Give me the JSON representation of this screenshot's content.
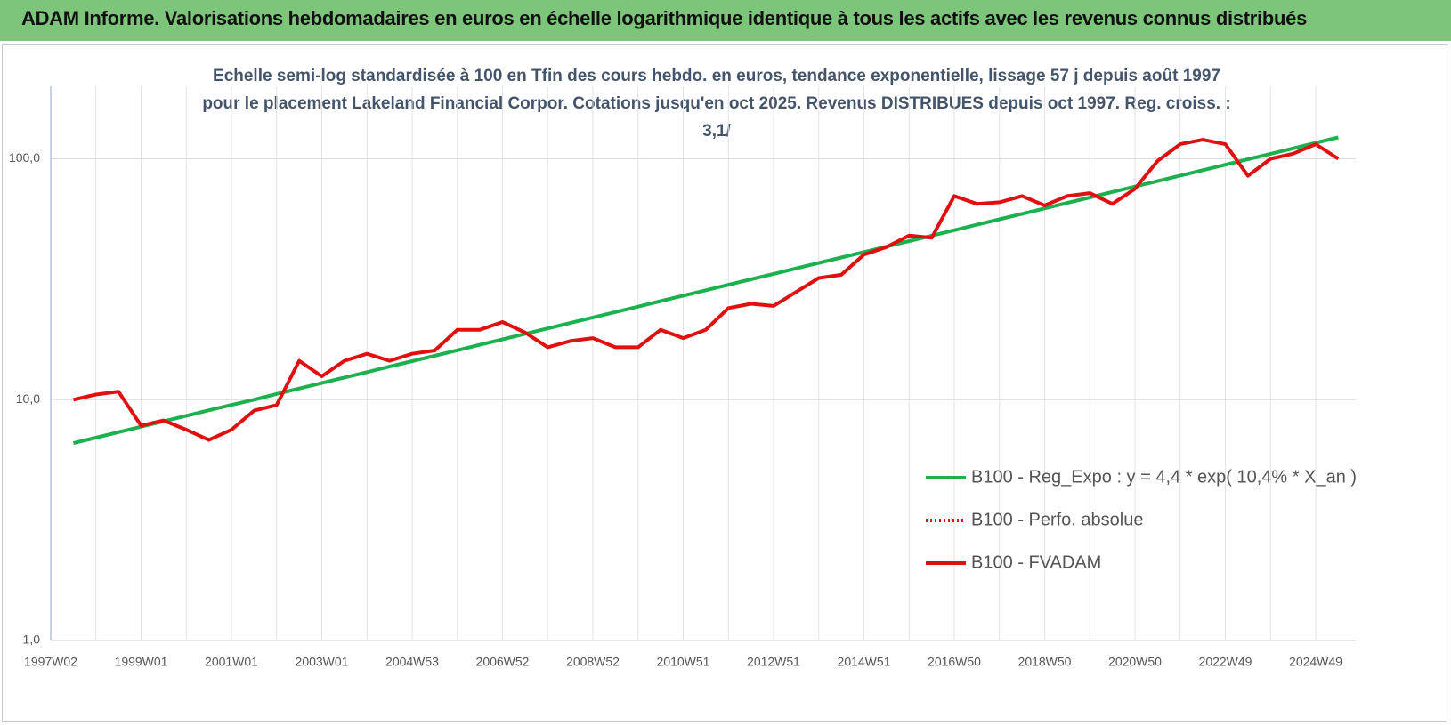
{
  "header": {
    "title": "ADAM Informe. Valorisations hebdomadaires en euros en échelle logarithmique identique à tous les actifs avec les revenus connus distribués"
  },
  "chart_data": {
    "type": "line",
    "title": "Echelle semi-log standardisée à 100 en Tfin des cours hebdo. en euros, tendance exponentielle, lissage 57 j depuis août 1997 pour le placement Lakeland Financial Corpor. Cotations jusqu'en oct 2025.  Revenus DISTRIBUES depuis oct 1997. Reg. croiss. : 3,1/",
    "categories": [
      "1997W02",
      null,
      null,
      null,
      "1999W01",
      null,
      null,
      null,
      "2001W01",
      null,
      null,
      null,
      "2003W01",
      null,
      null,
      null,
      "2004W53",
      null,
      null,
      null,
      "2006W52",
      null,
      null,
      null,
      "2008W52",
      null,
      null,
      null,
      "2010W51",
      null,
      null,
      null,
      "2012W51",
      null,
      null,
      null,
      "2014W51",
      null,
      null,
      null,
      "2016W50",
      null,
      null,
      null,
      "2018W50",
      null,
      null,
      null,
      "2020W50",
      null,
      null,
      null,
      "2022W49",
      null,
      null,
      null,
      "2024W49",
      null
    ],
    "series": [
      {
        "name": "B100 - Reg_Expo : y = 4,4 * exp( 10,4% *  X_an )",
        "color": "#1db04f",
        "style": "solid",
        "values": [
          null,
          6.6,
          6.95,
          7.33,
          7.72,
          8.13,
          8.57,
          9.03,
          9.51,
          10.0,
          10.56,
          11.13,
          11.72,
          12.35,
          13.01,
          13.71,
          14.44,
          15.22,
          16.03,
          16.89,
          17.8,
          18.75,
          19.75,
          20.81,
          21.93,
          23.1,
          24.34,
          25.64,
          27.01,
          28.46,
          29.99,
          31.59,
          33.28,
          35.07,
          36.94,
          38.92,
          41.0,
          43.2,
          45.52,
          47.95,
          50.52,
          53.23,
          56.08,
          59.08,
          62.24,
          65.58,
          69.09,
          72.79,
          76.69,
          80.79,
          85.12,
          89.68,
          94.48,
          99.54,
          104.9,
          110.5,
          116.4,
          122.6
        ]
      },
      {
        "name": "B100 - Perfo. absolue",
        "color": "#e01010",
        "style": "dotted",
        "values": [
          null,
          null,
          null,
          null,
          null,
          null,
          null,
          null,
          null,
          null,
          null,
          null,
          null,
          null,
          null,
          null,
          null,
          null,
          null,
          null,
          null,
          null,
          null,
          null,
          null,
          null,
          null,
          null,
          null,
          null,
          null,
          null,
          null,
          null,
          null,
          null,
          null,
          null,
          null,
          null,
          null,
          null,
          null,
          null,
          null,
          null,
          null,
          null,
          null,
          null,
          null,
          null,
          null,
          null,
          null,
          null,
          null,
          null
        ]
      },
      {
        "name": "B100 - FVADAM",
        "color": "#e01010",
        "style": "solid",
        "values": [
          null,
          10,
          10.5,
          10.8,
          7.8,
          8.2,
          7.5,
          6.8,
          7.5,
          9.0,
          9.5,
          14.5,
          12.5,
          14.5,
          15.5,
          14.5,
          15.5,
          16,
          19.5,
          19.5,
          21,
          19,
          16.5,
          17.5,
          18,
          16.5,
          16.5,
          19.5,
          18,
          19.5,
          24,
          25,
          24.5,
          28,
          32,
          33,
          40,
          43,
          48,
          47,
          70,
          65,
          66,
          70,
          64,
          70,
          72,
          65,
          75,
          98,
          115,
          120,
          115,
          85,
          100,
          105,
          115,
          100
        ]
      }
    ],
    "ylim": [
      1,
      200
    ],
    "log_y": true,
    "yticks": [
      {
        "value": 1,
        "label": "1,0"
      },
      {
        "value": 10,
        "label": "10,0"
      },
      {
        "value": 100,
        "label": "100,0"
      }
    ],
    "grid": true
  }
}
